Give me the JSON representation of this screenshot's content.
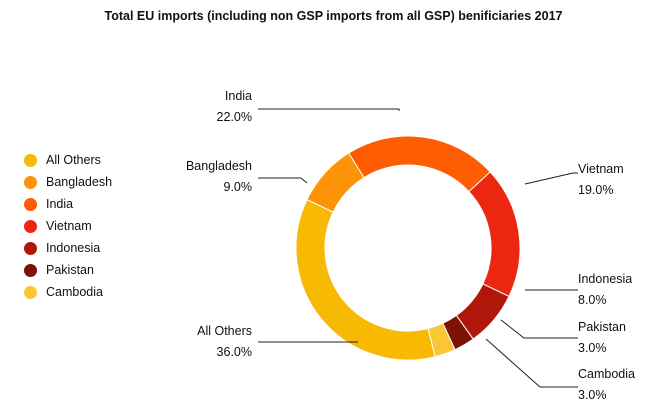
{
  "chart_data": {
    "type": "pie",
    "donut": true,
    "title": "Total EU imports (including non GSP imports from all GSP) benificiaries 2017",
    "start_category": "India",
    "direction": "clockwise",
    "legend_position": "left",
    "slices": [
      {
        "label": "India",
        "value": 22.0,
        "value_label": "22.0%",
        "color": "#fd5c01"
      },
      {
        "label": "Vietnam",
        "value": 19.0,
        "value_label": "19.0%",
        "color": "#ec2711"
      },
      {
        "label": "Indonesia",
        "value": 8.0,
        "value_label": "8.0%",
        "color": "#b01708"
      },
      {
        "label": "Pakistan",
        "value": 3.0,
        "value_label": "3.0%",
        "color": "#7e1205"
      },
      {
        "label": "Cambodia",
        "value": 3.0,
        "value_label": "3.0%",
        "color": "#fbc634"
      },
      {
        "label": "All Others",
        "value": 36.0,
        "value_label": "36.0%",
        "color": "#f8b902"
      },
      {
        "label": "Bangladesh",
        "value": 9.0,
        "value_label": "9.0%",
        "color": "#fd9307"
      }
    ],
    "legend_order": [
      "All Others",
      "Bangladesh",
      "India",
      "Vietnam",
      "Indonesia",
      "Pakistan",
      "Cambodia"
    ]
  }
}
